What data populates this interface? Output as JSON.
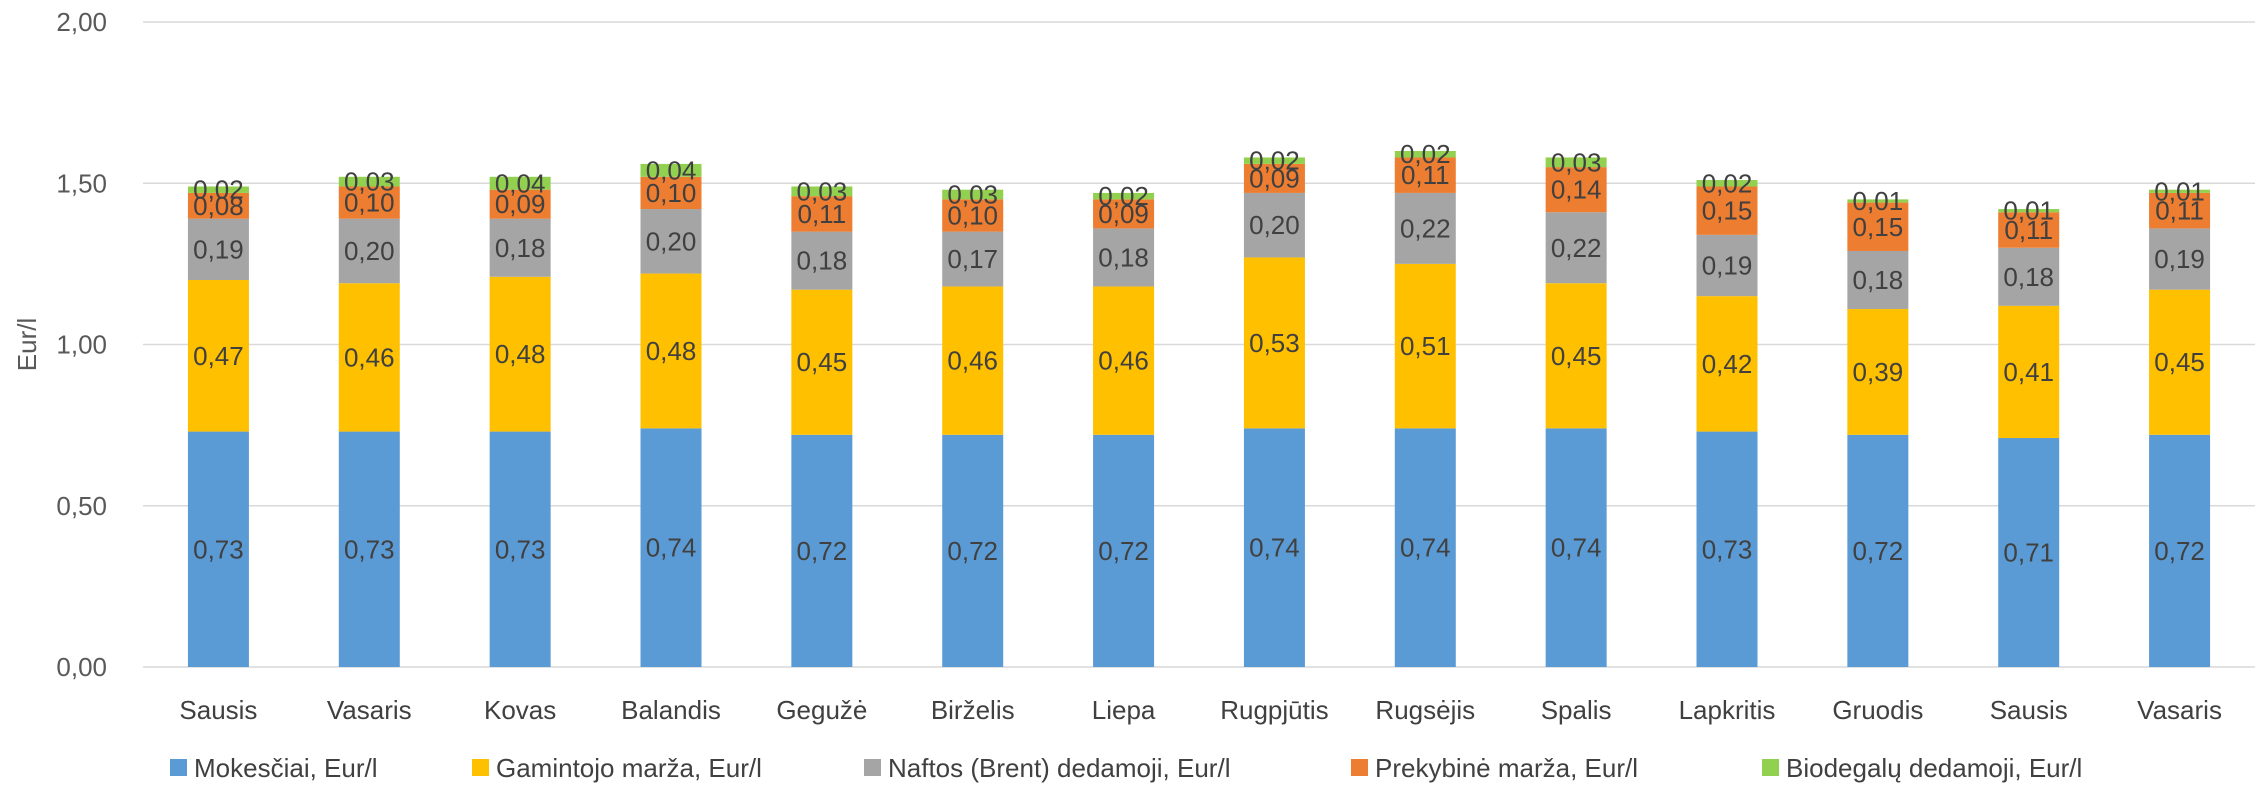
{
  "chart_data": {
    "type": "bar",
    "stacked": true,
    "ylabel": "Eur/l",
    "ylim": [
      0,
      2
    ],
    "yticks": [
      "0,00",
      "0,50",
      "1,00",
      "1,50",
      "2,00"
    ],
    "grid": true,
    "legend_position": "bottom",
    "categories": [
      "Sausis",
      "Vasaris",
      "Kovas",
      "Balandis",
      "Gegužė",
      "Birželis",
      "Liepa",
      "Rugpjūtis",
      "Rugsėjis",
      "Spalis",
      "Lapkritis",
      "Gruodis",
      "Sausis",
      "Vasaris"
    ],
    "series": [
      {
        "name": "Mokesčiai, Eur/l",
        "color": "#5B9BD5",
        "values": [
          0.73,
          0.73,
          0.73,
          0.74,
          0.72,
          0.72,
          0.72,
          0.74,
          0.74,
          0.74,
          0.73,
          0.72,
          0.71,
          0.72
        ],
        "labels": [
          "0,73",
          "0,73",
          "0,73",
          "0,74",
          "0,72",
          "0,72",
          "0,72",
          "0,74",
          "0,74",
          "0,74",
          "0,73",
          "0,72",
          "0,71",
          "0,72"
        ]
      },
      {
        "name": "Gamintojo marža, Eur/l",
        "color": "#FFC000",
        "values": [
          0.47,
          0.46,
          0.48,
          0.48,
          0.45,
          0.46,
          0.46,
          0.53,
          0.51,
          0.45,
          0.42,
          0.39,
          0.41,
          0.45
        ],
        "labels": [
          "0,47",
          "0,46",
          "0,48",
          "0,48",
          "0,45",
          "0,46",
          "0,46",
          "0,53",
          "0,51",
          "0,45",
          "0,42",
          "0,39",
          "0,41",
          "0,45"
        ]
      },
      {
        "name": "Naftos (Brent) dedamoji, Eur/l",
        "color": "#A5A5A5",
        "values": [
          0.19,
          0.2,
          0.18,
          0.2,
          0.18,
          0.17,
          0.18,
          0.2,
          0.22,
          0.22,
          0.19,
          0.18,
          0.18,
          0.19
        ],
        "labels": [
          "0,19",
          "0,20",
          "0,18",
          "0,20",
          "0,18",
          "0,17",
          "0,18",
          "0,20",
          "0,22",
          "0,22",
          "0,19",
          "0,18",
          "0,18",
          "0,19"
        ]
      },
      {
        "name": "Prekybinė marža, Eur/l",
        "color": "#ED7D31",
        "values": [
          0.08,
          0.1,
          0.09,
          0.1,
          0.11,
          0.1,
          0.09,
          0.09,
          0.11,
          0.14,
          0.15,
          0.15,
          0.11,
          0.11
        ],
        "labels": [
          "0,08",
          "0,10",
          "0,09",
          "0,10",
          "0,11",
          "0,10",
          "0,09",
          "0,09",
          "0,11",
          "0,14",
          "0,15",
          "0,15",
          "0,11",
          "0,11"
        ]
      },
      {
        "name": "Biodegalų dedamoji, Eur/l",
        "color": "#92D050",
        "values": [
          0.02,
          0.03,
          0.04,
          0.04,
          0.03,
          0.03,
          0.02,
          0.02,
          0.02,
          0.03,
          0.02,
          0.01,
          0.01,
          0.01
        ],
        "labels": [
          "0,02",
          "0,03",
          "0,04",
          "0,04",
          "0,03",
          "0,03",
          "0,02",
          "0,02",
          "0,02",
          "0,03",
          "0,02",
          "0,01",
          "0,01",
          "0,01"
        ]
      }
    ]
  }
}
